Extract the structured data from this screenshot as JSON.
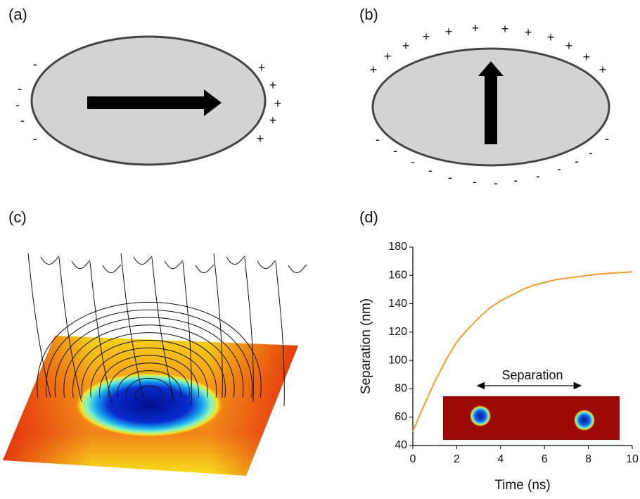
{
  "panels": {
    "a": {
      "label": "(a)",
      "minus": [
        "-",
        "-",
        "-",
        "-",
        "-"
      ],
      "plus": [
        "+",
        "+",
        "+",
        "+",
        "+"
      ]
    },
    "b": {
      "label": "(b)",
      "plus": [
        "+",
        "+",
        "+",
        "+",
        "+",
        "+",
        "+",
        "+",
        "+",
        "+",
        "+",
        "+"
      ],
      "minus": [
        "-",
        "-",
        "-",
        "-",
        "-",
        "-",
        "-",
        "-",
        "-",
        "-",
        "-",
        "-",
        "-"
      ]
    },
    "c": {
      "label": "(c)"
    },
    "d": {
      "label": "(d)"
    }
  },
  "chart_data": {
    "type": "line",
    "x": [
      0,
      0.5,
      1,
      1.5,
      2,
      2.5,
      3,
      3.5,
      4,
      4.5,
      5,
      5.5,
      6,
      6.5,
      7,
      7.5,
      8,
      8.5,
      9,
      9.5,
      10
    ],
    "values": [
      50,
      68,
      85,
      100,
      113,
      122,
      130,
      137,
      142,
      146,
      150,
      153,
      155,
      157,
      158,
      159,
      160,
      161,
      161.5,
      162,
      162.5
    ],
    "color": "#f39a2e",
    "xlabel": "Time (ns)",
    "ylabel": "Separation (nm)",
    "xlim": [
      0,
      10
    ],
    "ylim": [
      40,
      180
    ],
    "xticks": [
      0,
      2,
      4,
      6,
      8,
      10
    ],
    "yticks": [
      40,
      60,
      80,
      100,
      120,
      140,
      160,
      180
    ],
    "inset_label": "Separation"
  }
}
